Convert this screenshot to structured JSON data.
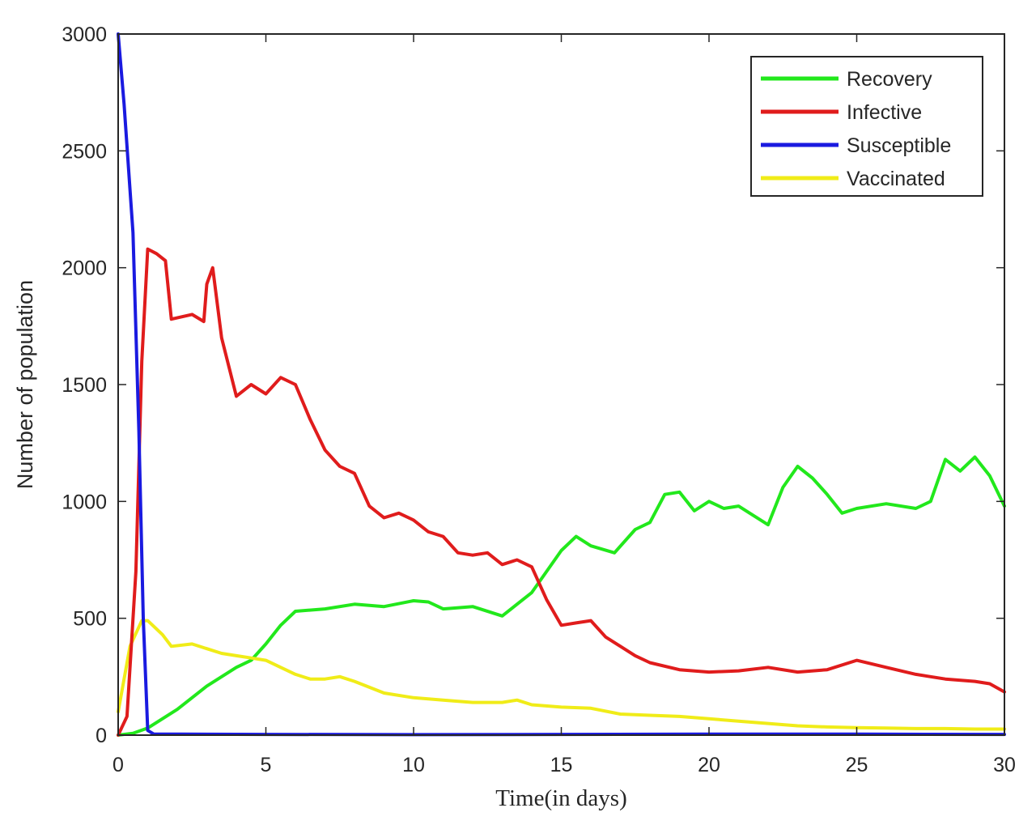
{
  "chart_data": {
    "type": "line",
    "xlabel": "Time(in days)",
    "ylabel": "Number of population",
    "xlim": [
      0,
      30
    ],
    "ylim": [
      0,
      3000
    ],
    "xticks": [
      "0",
      "5",
      "10",
      "15",
      "20",
      "25",
      "30"
    ],
    "yticks": [
      "0",
      "500",
      "1000",
      "1500",
      "2000",
      "2500",
      "3000"
    ],
    "grid": false,
    "legend": {
      "position": "top-right",
      "entries": [
        "Recovery",
        "Infective",
        "Susceptible",
        "Vaccinated"
      ]
    },
    "series": [
      {
        "name": "Recovery",
        "color": "#22e81c",
        "points": [
          [
            0,
            0
          ],
          [
            0.5,
            8
          ],
          [
            1,
            30
          ],
          [
            2,
            110
          ],
          [
            3,
            210
          ],
          [
            4,
            290
          ],
          [
            4.5,
            320
          ],
          [
            5,
            390
          ],
          [
            5.5,
            470
          ],
          [
            6,
            530
          ],
          [
            7,
            540
          ],
          [
            8,
            560
          ],
          [
            9,
            550
          ],
          [
            10,
            575
          ],
          [
            10.5,
            570
          ],
          [
            11,
            540
          ],
          [
            12,
            550
          ],
          [
            13,
            510
          ],
          [
            14,
            610
          ],
          [
            14.5,
            700
          ],
          [
            15,
            790
          ],
          [
            15.5,
            850
          ],
          [
            16,
            810
          ],
          [
            16.8,
            780
          ],
          [
            17.5,
            880
          ],
          [
            18,
            910
          ],
          [
            18.5,
            1030
          ],
          [
            19,
            1040
          ],
          [
            19.5,
            960
          ],
          [
            20,
            1000
          ],
          [
            20.5,
            970
          ],
          [
            21,
            980
          ],
          [
            22,
            900
          ],
          [
            22.5,
            1060
          ],
          [
            23,
            1150
          ],
          [
            23.5,
            1100
          ],
          [
            24,
            1030
          ],
          [
            24.5,
            950
          ],
          [
            25,
            970
          ],
          [
            26,
            990
          ],
          [
            27,
            970
          ],
          [
            27.5,
            1000
          ],
          [
            28,
            1180
          ],
          [
            28.5,
            1130
          ],
          [
            29,
            1190
          ],
          [
            29.5,
            1110
          ],
          [
            30,
            980
          ]
        ]
      },
      {
        "name": "Infective",
        "color": "#e01c1c",
        "points": [
          [
            0,
            0
          ],
          [
            0.3,
            80
          ],
          [
            0.6,
            700
          ],
          [
            0.8,
            1600
          ],
          [
            1,
            2080
          ],
          [
            1.3,
            2060
          ],
          [
            1.6,
            2030
          ],
          [
            1.8,
            1780
          ],
          [
            2.5,
            1800
          ],
          [
            2.9,
            1770
          ],
          [
            3,
            1930
          ],
          [
            3.2,
            2000
          ],
          [
            3.5,
            1700
          ],
          [
            4,
            1450
          ],
          [
            4.5,
            1500
          ],
          [
            5,
            1460
          ],
          [
            5.5,
            1530
          ],
          [
            6,
            1500
          ],
          [
            6.5,
            1350
          ],
          [
            7,
            1220
          ],
          [
            7.5,
            1150
          ],
          [
            8,
            1120
          ],
          [
            8.5,
            980
          ],
          [
            9,
            930
          ],
          [
            9.5,
            950
          ],
          [
            10,
            920
          ],
          [
            10.5,
            870
          ],
          [
            11,
            850
          ],
          [
            11.5,
            780
          ],
          [
            12,
            770
          ],
          [
            12.5,
            780
          ],
          [
            13,
            730
          ],
          [
            13.5,
            750
          ],
          [
            14,
            720
          ],
          [
            14.5,
            580
          ],
          [
            15,
            470
          ],
          [
            15.5,
            480
          ],
          [
            16,
            490
          ],
          [
            16.5,
            420
          ],
          [
            17,
            380
          ],
          [
            17.5,
            340
          ],
          [
            18,
            310
          ],
          [
            19,
            280
          ],
          [
            20,
            270
          ],
          [
            21,
            275
          ],
          [
            22,
            290
          ],
          [
            23,
            270
          ],
          [
            24,
            280
          ],
          [
            25,
            320
          ],
          [
            26,
            290
          ],
          [
            27,
            260
          ],
          [
            28,
            240
          ],
          [
            29,
            230
          ],
          [
            29.5,
            220
          ],
          [
            30,
            185
          ]
        ]
      },
      {
        "name": "Susceptible",
        "color": "#1a1ae0",
        "points": [
          [
            0,
            3000
          ],
          [
            0.2,
            2700
          ],
          [
            0.5,
            2150
          ],
          [
            0.7,
            1300
          ],
          [
            0.85,
            500
          ],
          [
            1,
            20
          ],
          [
            1.2,
            5
          ],
          [
            5,
            3
          ],
          [
            10,
            2
          ],
          [
            15,
            3
          ],
          [
            20,
            4
          ],
          [
            25,
            4
          ],
          [
            30,
            3
          ]
        ]
      },
      {
        "name": "Vaccinated",
        "color": "#f0ec18",
        "points": [
          [
            0,
            100
          ],
          [
            0.4,
            380
          ],
          [
            0.8,
            490
          ],
          [
            1,
            490
          ],
          [
            1.5,
            430
          ],
          [
            1.8,
            380
          ],
          [
            2.5,
            390
          ],
          [
            3,
            370
          ],
          [
            3.5,
            350
          ],
          [
            4,
            340
          ],
          [
            4.5,
            330
          ],
          [
            5,
            320
          ],
          [
            5.5,
            290
          ],
          [
            6,
            260
          ],
          [
            6.5,
            240
          ],
          [
            7,
            240
          ],
          [
            7.5,
            250
          ],
          [
            8,
            230
          ],
          [
            9,
            180
          ],
          [
            10,
            160
          ],
          [
            11,
            150
          ],
          [
            12,
            140
          ],
          [
            13,
            140
          ],
          [
            13.5,
            150
          ],
          [
            14,
            130
          ],
          [
            15,
            120
          ],
          [
            16,
            115
          ],
          [
            17,
            90
          ],
          [
            18,
            85
          ],
          [
            19,
            80
          ],
          [
            20,
            70
          ],
          [
            21,
            60
          ],
          [
            22,
            50
          ],
          [
            23,
            40
          ],
          [
            24,
            35
          ],
          [
            25,
            32
          ],
          [
            26,
            30
          ],
          [
            27,
            28
          ],
          [
            28,
            28
          ],
          [
            29,
            26
          ],
          [
            30,
            26
          ]
        ]
      }
    ]
  }
}
